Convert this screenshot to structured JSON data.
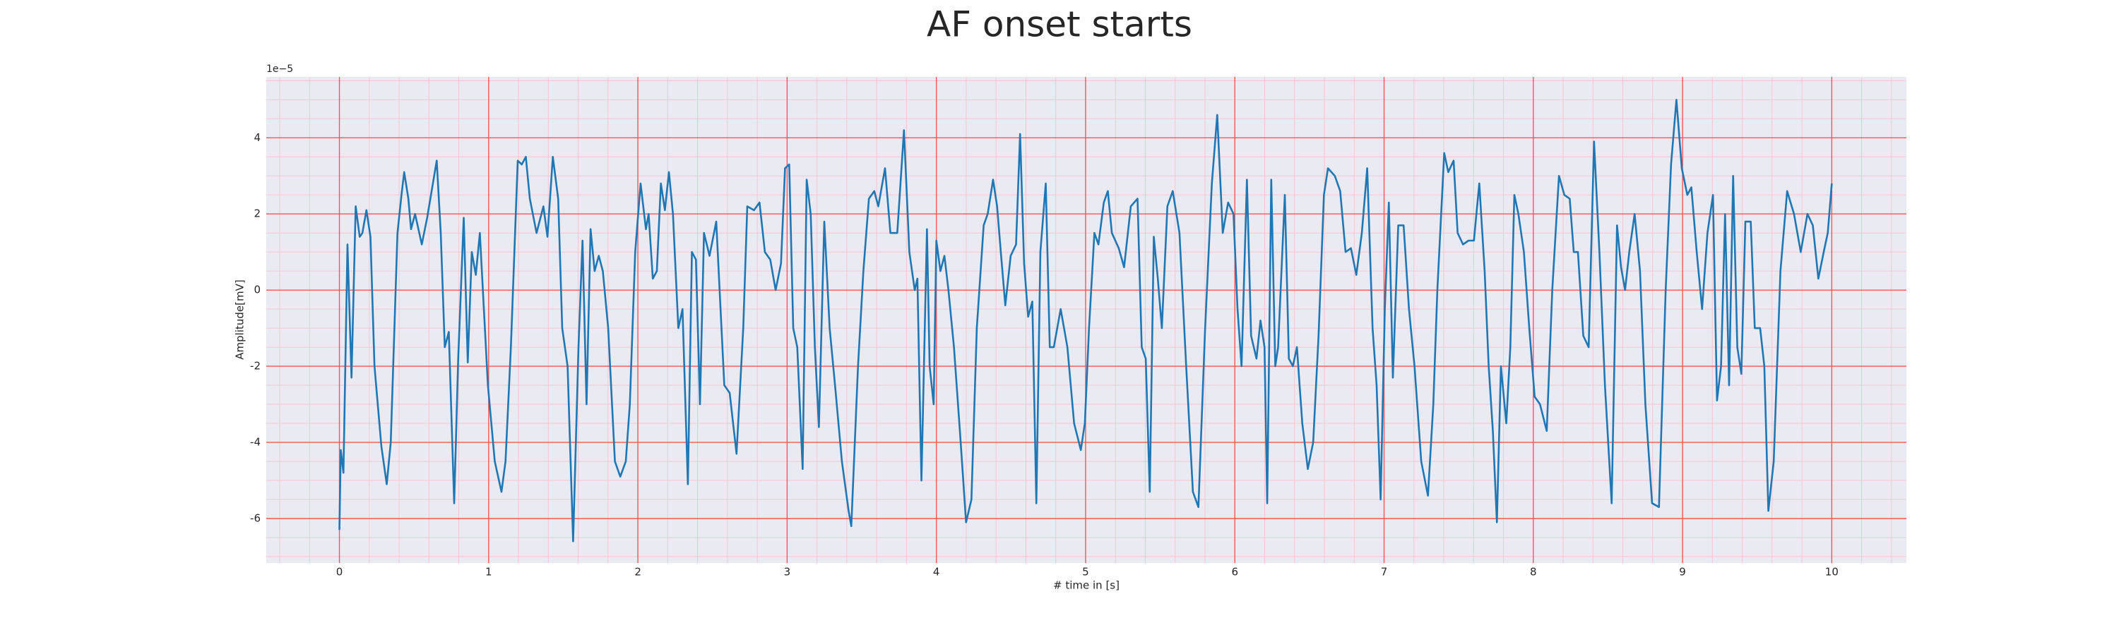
{
  "chart_data": {
    "type": "line",
    "title": "AF onset starts",
    "xlabel": "# time in [s]",
    "ylabel": "Amplitude[mV]",
    "y_offset_label": "1e−5",
    "color": "#1f77b4",
    "grid": true,
    "grid_color": "#ff5555",
    "minor_grid_color": "#f6c6d2",
    "background": "#eaeaf2",
    "xlim": [
      -0.49,
      10.5
    ],
    "ylim": [
      -7.17,
      5.6
    ],
    "xticks": [
      0,
      1,
      2,
      3,
      4,
      5,
      6,
      7,
      8,
      9,
      10
    ],
    "yticks": [
      -6,
      -4,
      -2,
      0,
      2,
      4
    ],
    "xminor": [
      -0.4,
      -0.2,
      0.2,
      0.4,
      0.6,
      0.8,
      1.2,
      1.4,
      1.6,
      1.8,
      2.2,
      2.4,
      2.6,
      2.8,
      3.2,
      3.4,
      3.6,
      3.8,
      4.2,
      4.4,
      4.6,
      4.8,
      5.2,
      5.4,
      5.6,
      5.8,
      6.2,
      6.4,
      6.6,
      6.8,
      7.2,
      7.4,
      7.6,
      7.8,
      8.2,
      8.4,
      8.6,
      8.8,
      9.2,
      9.4,
      9.6,
      9.8,
      10.2,
      10.4
    ],
    "yminor": [
      -7,
      -6.5,
      -5.5,
      -5,
      -4.5,
      -3.5,
      -3,
      -2.5,
      -1.5,
      -1,
      -0.5,
      0.5,
      1,
      1.5,
      2.5,
      3,
      3.5,
      4.5,
      5,
      5.5
    ],
    "x": [
      0,
      0.009,
      0.027,
      0.054,
      0.081,
      0.109,
      0.136,
      0.154,
      0.181,
      0.208,
      0.235,
      0.281,
      0.317,
      0.344,
      0.389,
      0.416,
      0.434,
      0.462,
      0.48,
      0.507,
      0.552,
      0.588,
      0.652,
      0.679,
      0.706,
      0.733,
      0.769,
      0.796,
      0.833,
      0.86,
      0.887,
      0.914,
      0.941,
      0.968,
      0.995,
      1.041,
      1.086,
      1.113,
      1.149,
      1.195,
      1.222,
      1.249,
      1.276,
      1.321,
      1.367,
      1.394,
      1.43,
      1.466,
      1.493,
      1.529,
      1.566,
      1.602,
      1.629,
      1.656,
      1.683,
      1.71,
      1.738,
      1.765,
      1.801,
      1.846,
      1.882,
      1.919,
      1.946,
      1.982,
      2.018,
      2.054,
      2.072,
      2.1,
      2.127,
      2.154,
      2.181,
      2.208,
      2.235,
      2.271,
      2.299,
      2.335,
      2.362,
      2.389,
      2.416,
      2.443,
      2.48,
      2.525,
      2.579,
      2.615,
      2.661,
      2.706,
      2.733,
      2.778,
      2.815,
      2.851,
      2.887,
      2.923,
      2.959,
      2.986,
      3.014,
      3.041,
      3.068,
      3.104,
      3.131,
      3.158,
      3.186,
      3.213,
      3.249,
      3.285,
      3.321,
      3.367,
      3.412,
      3.43,
      3.475,
      3.511,
      3.548,
      3.584,
      3.611,
      3.656,
      3.692,
      3.738,
      3.783,
      3.819,
      3.855,
      3.873,
      3.9,
      3.937,
      3.955,
      3.982,
      4.0,
      4.027,
      4.054,
      4.081,
      4.118,
      4.163,
      4.199,
      4.235,
      4.271,
      4.317,
      4.344,
      4.38,
      4.407,
      4.434,
      4.462,
      4.498,
      4.534,
      4.561,
      4.588,
      4.615,
      4.643,
      4.67,
      4.697,
      4.733,
      4.76,
      4.787,
      4.833,
      4.878,
      4.923,
      4.968,
      4.995,
      5.023,
      5.059,
      5.086,
      5.122,
      5.149,
      5.176,
      5.222,
      5.258,
      5.303,
      5.348,
      5.376,
      5.403,
      5.43,
      5.457,
      5.484,
      5.511,
      5.548,
      5.584,
      5.629,
      5.674,
      5.719,
      5.756,
      5.801,
      5.846,
      5.882,
      5.919,
      5.955,
      5.991,
      6.018,
      6.045,
      6.081,
      6.109,
      6.145,
      6.172,
      6.199,
      6.217,
      6.244,
      6.271,
      6.29,
      6.335,
      6.362,
      6.389,
      6.416,
      6.452,
      6.489,
      6.525,
      6.561,
      6.597,
      6.624,
      6.67,
      6.706,
      6.742,
      6.778,
      6.814,
      6.851,
      6.887,
      6.923,
      6.95,
      6.977,
      7.005,
      7.032,
      7.059,
      7.095,
      7.131,
      7.167,
      7.204,
      7.249,
      7.294,
      7.33,
      7.357,
      7.403,
      7.43,
      7.466,
      7.493,
      7.529,
      7.566,
      7.602,
      7.638,
      7.674,
      7.701,
      7.729,
      7.756,
      7.783,
      7.819,
      7.846,
      7.873,
      7.9,
      7.937,
      7.973,
      8.009,
      8.045,
      8.09,
      8.127,
      8.172,
      8.208,
      8.244,
      8.271,
      8.299,
      8.335,
      8.371,
      8.407,
      8.443,
      8.48,
      8.525,
      8.561,
      8.588,
      8.615,
      8.643,
      8.679,
      8.715,
      8.751,
      8.796,
      8.842,
      8.887,
      8.923,
      8.959,
      8.995,
      9.032,
      9.059,
      9.095,
      9.131,
      9.167,
      9.204,
      9.231,
      9.258,
      9.285,
      9.312,
      9.339,
      9.367,
      9.394,
      9.421,
      9.457,
      9.484,
      9.52,
      9.548,
      9.575,
      9.611,
      9.656,
      9.701,
      9.747,
      9.792,
      9.837,
      9.873,
      9.91,
      9.946,
      9.973,
      10.0
    ],
    "values": [
      -6.3,
      -4.2,
      -4.8,
      1.2,
      -2.3,
      2.2,
      1.4,
      1.5,
      2.1,
      1.4,
      -2,
      -4.1,
      -5.1,
      -4,
      1.5,
      2.5,
      3.1,
      2.4,
      1.6,
      2,
      1.2,
      1.9,
      3.4,
      1.5,
      -1.5,
      -1.1,
      -5.6,
      -1.8,
      1.9,
      -1.9,
      1,
      0.4,
      1.5,
      -0.5,
      -2.5,
      -4.5,
      -5.3,
      -4.5,
      -1.5,
      3.4,
      3.3,
      3.5,
      2.4,
      1.5,
      2.2,
      1.4,
      3.5,
      2.4,
      -1,
      -2,
      -6.6,
      -1.5,
      1.3,
      -3,
      1.6,
      0.5,
      0.9,
      0.5,
      -1,
      -4.5,
      -4.9,
      -4.5,
      -3,
      1,
      2.8,
      1.6,
      2,
      0.3,
      0.5,
      2.8,
      2.1,
      3.1,
      2,
      -1,
      -0.5,
      -5.1,
      1,
      0.8,
      -3,
      1.5,
      0.9,
      1.8,
      -2.5,
      -2.7,
      -4.3,
      -1,
      2.2,
      2.1,
      2.3,
      1,
      0.8,
      0,
      0.7,
      3.2,
      3.3,
      -1,
      -1.5,
      -4.7,
      2.9,
      2,
      -1.5,
      -3.6,
      1.8,
      -1,
      -2.5,
      -4.5,
      -5.8,
      -6.2,
      -2,
      0.5,
      2.4,
      2.6,
      2.2,
      3.2,
      1.5,
      1.5,
      4.2,
      1,
      0,
      0.3,
      -5,
      1.6,
      -2,
      -3,
      1.3,
      0.5,
      0.9,
      0,
      -1.5,
      -4,
      -6.1,
      -5.5,
      -1,
      1.7,
      2,
      2.9,
      2.2,
      0.9,
      -0.4,
      0.9,
      1.2,
      4.1,
      0.7,
      -0.7,
      -0.3,
      -5.6,
      1,
      2.8,
      -1.5,
      -1.5,
      -0.5,
      -1.5,
      -3.5,
      -4.2,
      -3.5,
      -1,
      1.5,
      1.2,
      2.3,
      2.6,
      1.5,
      1.1,
      0.6,
      2.2,
      2.4,
      -1.5,
      -1.8,
      -5.3,
      1.4,
      0.3,
      -1,
      2.2,
      2.6,
      1.5,
      -2,
      -5.3,
      -5.7,
      -1,
      2.8,
      4.6,
      1.5,
      2.3,
      2,
      -0.5,
      -2,
      2.9,
      -1.2,
      -1.8,
      -0.8,
      -1.5,
      -5.6,
      2.9,
      -2,
      -1.5,
      2.5,
      -1.8,
      -2,
      -1.5,
      -3.5,
      -4.7,
      -4,
      -1.2,
      2.5,
      3.2,
      3,
      2.6,
      1,
      1.1,
      0.4,
      1.5,
      3.2,
      -1,
      -2.5,
      -5.5,
      -0.5,
      2.3,
      -2.3,
      1.7,
      1.7,
      -0.5,
      -2,
      -4.5,
      -5.4,
      -3,
      0,
      3.6,
      3.1,
      3.4,
      1.5,
      1.2,
      1.3,
      1.3,
      2.8,
      0.5,
      -2,
      -3.7,
      -6.1,
      -2,
      -3.5,
      -1.5,
      2.5,
      2,
      1,
      -1,
      -2.8,
      -3,
      -3.7,
      0,
      3,
      2.5,
      2.4,
      1,
      1,
      -1.2,
      -1.5,
      3.9,
      1,
      -2.5,
      -5.6,
      1.7,
      0.6,
      0,
      1,
      2,
      0.5,
      -3,
      -5.6,
      -5.7,
      0,
      3.3,
      5,
      3.2,
      2.5,
      2.7,
      1,
      -0.5,
      1.5,
      2.5,
      -2.9,
      -2,
      2,
      -2.5,
      3,
      -1.5,
      -2.2,
      1.8,
      1.8,
      -1,
      -1,
      -2,
      -5.8,
      -4.5,
      0.5,
      2.6,
      2,
      1,
      2,
      1.7,
      0.3,
      1,
      1.5,
      2.8
    ]
  }
}
